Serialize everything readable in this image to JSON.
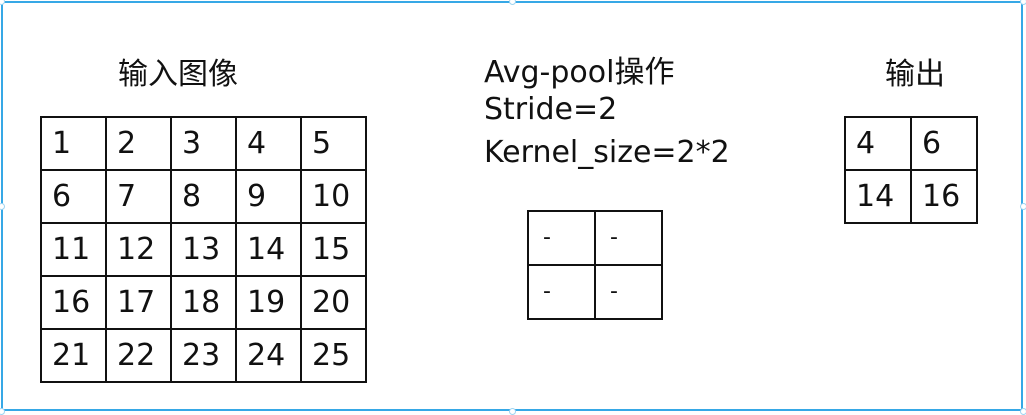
{
  "input": {
    "title": "输入图像",
    "rows": [
      [
        "1",
        "2",
        "3",
        "4",
        "5"
      ],
      [
        "6",
        "7",
        "8",
        "9",
        "10"
      ],
      [
        "11",
        "12",
        "13",
        "14",
        "15"
      ],
      [
        "16",
        "17",
        "18",
        "19",
        "20"
      ],
      [
        "21",
        "22",
        "23",
        "24",
        "25"
      ]
    ]
  },
  "operation": {
    "lines": [
      "Avg-pool操作",
      "Stride=2",
      "Kernel_size=2*2"
    ]
  },
  "kernel": {
    "rows": [
      [
        "-",
        "-"
      ],
      [
        "-",
        "-"
      ]
    ]
  },
  "output": {
    "title": "输出",
    "rows": [
      [
        "4",
        "6"
      ],
      [
        "14",
        "16"
      ]
    ]
  },
  "colors": {
    "frame_border": "#36a8e6",
    "grid_line": "#111111"
  }
}
